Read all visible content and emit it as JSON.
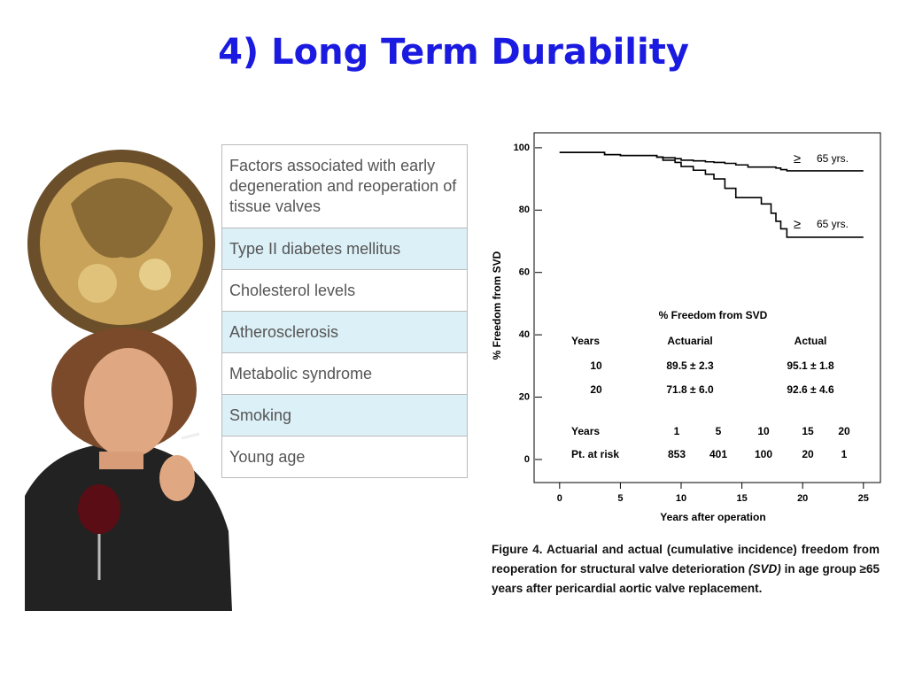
{
  "title": "4) Long Term Durability",
  "table": {
    "rows": [
      "Factors associated with early degeneration and reoperation of tissue valves",
      "Type II diabetes mellitus",
      "Cholesterol levels",
      "Atherosclerosis",
      "Metabolic syndrome",
      "Smoking",
      "Young age"
    ]
  },
  "chart_data": {
    "type": "step",
    "xlabel": "Years after operation",
    "ylabel": "% Freedom from SVD",
    "x": [
      0,
      3.7,
      5,
      8,
      8.5,
      9.5,
      10,
      11,
      12,
      12.7,
      13.6,
      14.5,
      15.5,
      16.6,
      17.4,
      17.8,
      18.2,
      18.7,
      25
    ],
    "series": [
      {
        "color": "#000000",
        "values": [
          98.5,
          97.8,
          97.5,
          97,
          96.8,
          96.5,
          96,
          95.8,
          95.5,
          95.3,
          95,
          94.5,
          93.8,
          93.8,
          93.8,
          93.5,
          93,
          92.6,
          92.6
        ]
      },
      {
        "color": "#000000",
        "values": [
          98.5,
          97.8,
          97.5,
          97,
          96,
          95.3,
          94,
          92.8,
          91.5,
          90,
          87,
          84,
          84,
          82,
          79,
          76.4,
          74,
          71.3,
          71.3
        ]
      }
    ],
    "annotations": [
      {
        "symbol": "≥",
        "text": "65 yrs."
      },
      {
        "symbol": "≥",
        "text": "65 yrs."
      }
    ],
    "xlim": [
      -2.1,
      26.4
    ],
    "ylim": [
      -7.4,
      104.8
    ],
    "xticks": [
      0,
      5,
      10,
      15,
      20,
      25
    ],
    "yticks": [
      0,
      20,
      40,
      60,
      80,
      100
    ],
    "inset_table": {
      "title": "% Freedom from SVD",
      "header": [
        "Years",
        "Actuarial",
        "Actual"
      ],
      "rows": [
        [
          "10",
          "89.5 ± 2.3",
          "95.1 ± 1.8"
        ],
        [
          "20",
          "71.8 ± 6.0",
          "92.6 ± 4.6"
        ]
      ]
    },
    "risk_table": {
      "rows": [
        [
          "Years",
          "1",
          "5",
          "10",
          "15",
          "20"
        ],
        [
          "Pt. at risk",
          "853",
          "401",
          "100",
          "20",
          "1"
        ]
      ]
    }
  },
  "caption": [
    "Figure 4. Actuarial and actual (cumulative incidence) freedom from reoperation for structural valve deterioration ",
    "(SVD)",
    " in age group ≥65 years after pericardial aortic valve replacement."
  ]
}
